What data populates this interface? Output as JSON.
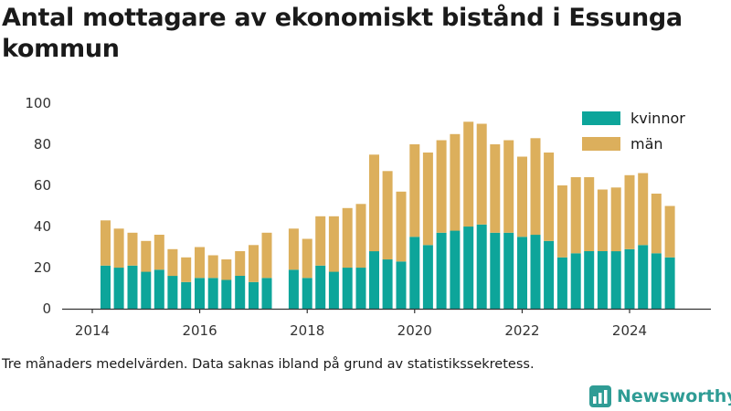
{
  "title": "Antal mottagare av ekonomiskt bistånd i Essunga kommun",
  "note": "Tre månaders medelvärden. Data saknas ibland på grund av statistikssekretess.",
  "brand": {
    "name": "Newsworthy",
    "icon": "newsworthy-logo-icon"
  },
  "colors": {
    "kvinnor": "#0da59a",
    "man": "#dcaf5c",
    "axis": "#333333",
    "grid": "#e6e6e6"
  },
  "chart_data": {
    "type": "bar",
    "stacked": true,
    "title": "Antal mottagare av ekonomiskt bistånd i Essunga kommun",
    "xlabel": "",
    "ylabel": "",
    "ylim": [
      0,
      100
    ],
    "yticks": [
      "0",
      "20",
      "40",
      "60",
      "80",
      "100"
    ],
    "xticks": [
      "2014",
      "2016",
      "2018",
      "2020",
      "2022",
      "2024"
    ],
    "legend_position": "top-right",
    "x": [
      "2014-04",
      "2014-07",
      "2014-10",
      "2015-01",
      "2015-04",
      "2015-07",
      "2015-10",
      "2016-01",
      "2016-04",
      "2016-07",
      "2016-10",
      "2017-01",
      "2017-04",
      "2017-10",
      "2018-01",
      "2018-04",
      "2018-07",
      "2018-10",
      "2019-01",
      "2019-04",
      "2019-07",
      "2019-10",
      "2020-01",
      "2020-04",
      "2020-07",
      "2020-10",
      "2021-01",
      "2021-04",
      "2021-07",
      "2021-10",
      "2022-01",
      "2022-04",
      "2022-07",
      "2022-10",
      "2023-01",
      "2023-04",
      "2023-07",
      "2023-10",
      "2024-01",
      "2024-04",
      "2024-07",
      "2024-10"
    ],
    "series": [
      {
        "name": "kvinnor",
        "values": [
          21,
          20,
          21,
          18,
          19,
          16,
          13,
          15,
          15,
          14,
          16,
          13,
          15,
          19,
          15,
          21,
          18,
          20,
          20,
          28,
          24,
          23,
          35,
          31,
          37,
          38,
          40,
          41,
          37,
          37,
          35,
          36,
          33,
          25,
          27,
          28,
          28,
          28,
          29,
          31,
          27,
          25
        ]
      },
      {
        "name": "män",
        "values": [
          22,
          19,
          16,
          15,
          17,
          13,
          12,
          15,
          11,
          10,
          12,
          18,
          22,
          20,
          19,
          24,
          27,
          29,
          31,
          47,
          43,
          34,
          45,
          45,
          45,
          47,
          51,
          49,
          43,
          45,
          39,
          47,
          43,
          35,
          37,
          36,
          30,
          31,
          36,
          35,
          29,
          25
        ]
      }
    ]
  }
}
